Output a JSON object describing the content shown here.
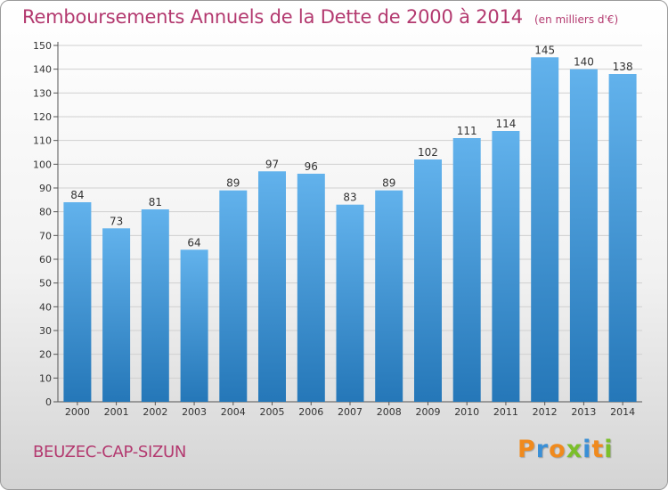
{
  "title": "Remboursements Annuels de la Dette de 2000 à 2014",
  "unit": "(en milliers d'€)",
  "commune": "BEUZEC-CAP-SIZUN",
  "brand": {
    "text": "Proxiti",
    "letter_colors": [
      "#f08a1d",
      "#3a8fd6",
      "#f08a1d",
      "#7bbf2a",
      "#3a8fd6",
      "#f08a1d",
      "#7bbf2a"
    ]
  },
  "colors": {
    "bar_top": "#62b2ec",
    "bar_bottom": "#2577b8",
    "title": "#b3396f",
    "grid": "#d0d0d0"
  },
  "chart_data": {
    "type": "bar",
    "title": "Remboursements Annuels de la Dette de 2000 à 2014",
    "xlabel": "",
    "ylabel": "",
    "ylim": [
      0,
      150
    ],
    "ytick_step": 10,
    "grid": true,
    "categories": [
      "2000",
      "2001",
      "2002",
      "2003",
      "2004",
      "2005",
      "2006",
      "2007",
      "2008",
      "2009",
      "2010",
      "2011",
      "2012",
      "2013",
      "2014"
    ],
    "values": [
      84,
      73,
      81,
      64,
      89,
      97,
      96,
      83,
      89,
      102,
      111,
      114,
      145,
      140,
      138
    ]
  }
}
